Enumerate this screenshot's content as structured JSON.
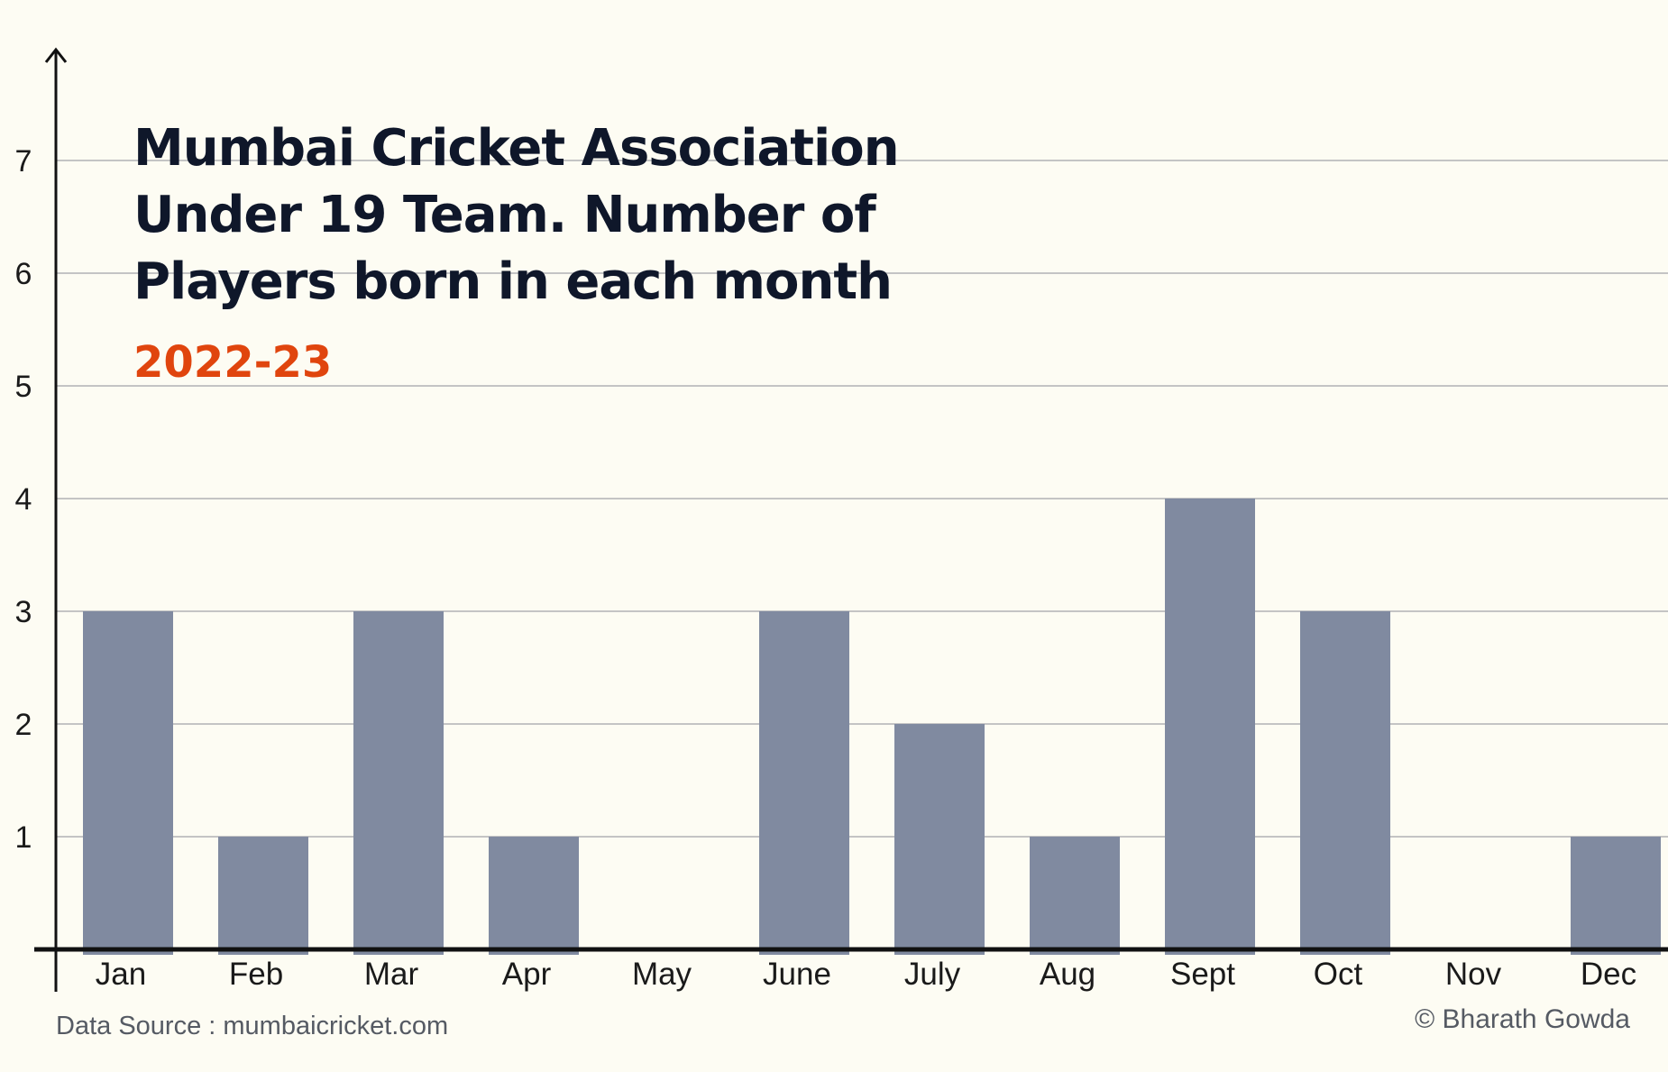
{
  "chart_data": {
    "type": "bar",
    "title_lines": [
      "Mumbai Cricket Association",
      "Under 19 Team. Number of",
      "Players born in each month"
    ],
    "subtitle": "2022-23",
    "categories": [
      "Jan",
      "Feb",
      "Mar",
      "Apr",
      "May",
      "June",
      "July",
      "Aug",
      "Sept",
      "Oct",
      "Nov",
      "Dec"
    ],
    "values": [
      3,
      1,
      3,
      1,
      0,
      3,
      2,
      1,
      4,
      3,
      0,
      1
    ],
    "ylim": [
      0,
      7.8
    ],
    "yticks": [
      1,
      2,
      3,
      4,
      5,
      6,
      7
    ],
    "xlabel": "",
    "ylabel": "",
    "grid": true,
    "legend": "none"
  },
  "footer": {
    "source": "Data Source : mumbaicricket.com",
    "credit": "© Bharath Gowda"
  },
  "colors": {
    "background": "#fdfcf3",
    "bar": "#808aa0",
    "grid": "#c4c4c4",
    "axis": "#111111",
    "title": "#0f172a",
    "subtitle": "#e0450e",
    "tick_label": "#1a1a1a"
  }
}
